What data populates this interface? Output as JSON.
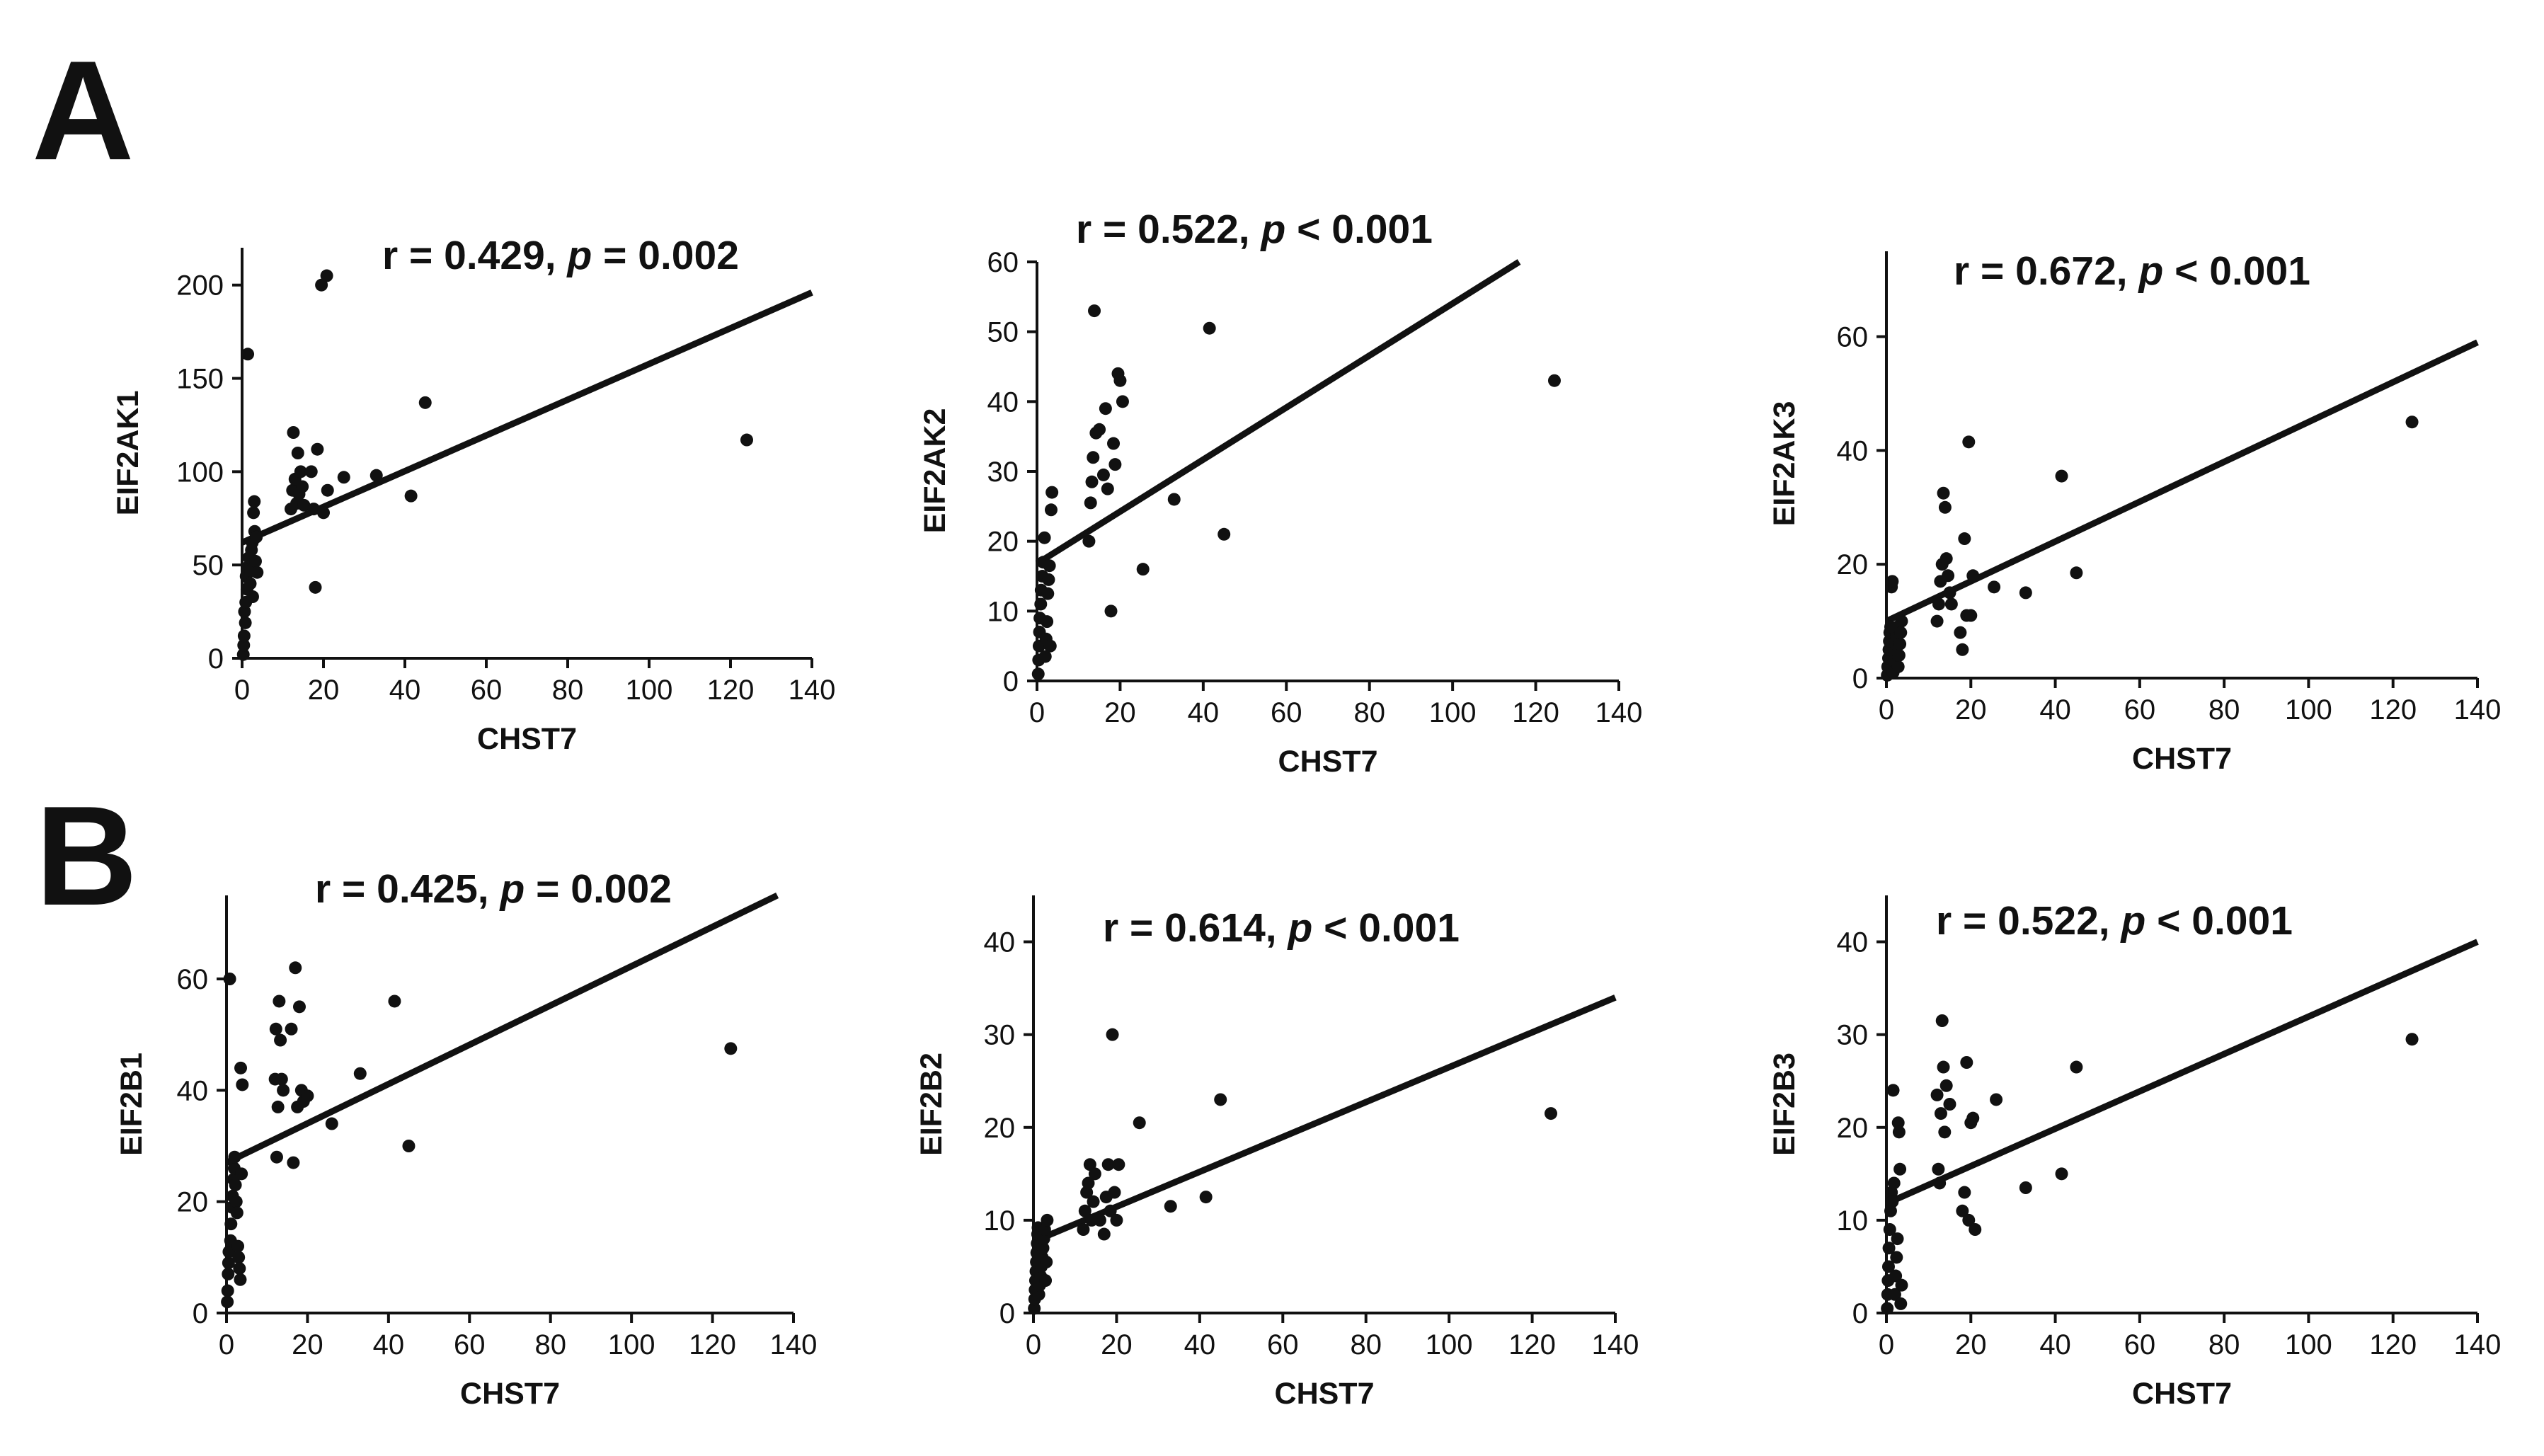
{
  "figure": {
    "panel_letters": [
      "A",
      "B"
    ]
  },
  "chart_data": [
    {
      "type": "scatter",
      "title": "",
      "stat": {
        "r": "0.429",
        "p_op": "=",
        "p": "0.002"
      },
      "xlabel": "CHST7",
      "ylabel": "EIF2AK1",
      "xlim": [
        0,
        140
      ],
      "ylim": [
        0,
        220
      ],
      "xticks": [
        0,
        20,
        40,
        60,
        80,
        100,
        120,
        140
      ],
      "yticks": [
        0,
        50,
        100,
        150,
        200
      ],
      "grid": false,
      "fit": [
        [
          0,
          62
        ],
        [
          140,
          196
        ]
      ],
      "points": [
        [
          0.3,
          2
        ],
        [
          0.4,
          7
        ],
        [
          0.5,
          12
        ],
        [
          0.8,
          19
        ],
        [
          0.6,
          25
        ],
        [
          0.9,
          30
        ],
        [
          1.2,
          37
        ],
        [
          1.0,
          44
        ],
        [
          1.4,
          163
        ],
        [
          1.5,
          49
        ],
        [
          1.7,
          54
        ],
        [
          2.0,
          40
        ],
        [
          2.2,
          47
        ],
        [
          2.3,
          58
        ],
        [
          2.5,
          62
        ],
        [
          2.6,
          33
        ],
        [
          2.8,
          78
        ],
        [
          3.0,
          84
        ],
        [
          3.1,
          68
        ],
        [
          3.3,
          52
        ],
        [
          3.5,
          65
        ],
        [
          3.7,
          46
        ],
        [
          12.0,
          80
        ],
        [
          12.4,
          90
        ],
        [
          12.6,
          121
        ],
        [
          13.0,
          96
        ],
        [
          13.4,
          83
        ],
        [
          13.7,
          110
        ],
        [
          14.0,
          88
        ],
        [
          14.4,
          100
        ],
        [
          14.8,
          92
        ],
        [
          15.2,
          82
        ],
        [
          17.0,
          100
        ],
        [
          17.6,
          80
        ],
        [
          18.0,
          38
        ],
        [
          18.5,
          112
        ],
        [
          19.5,
          200
        ],
        [
          20.0,
          78
        ],
        [
          20.8,
          205
        ],
        [
          21.0,
          90
        ],
        [
          25.0,
          97
        ],
        [
          33.0,
          98
        ],
        [
          41.5,
          87
        ],
        [
          45.0,
          137
        ],
        [
          124.0,
          117
        ]
      ]
    },
    {
      "type": "scatter",
      "title": "",
      "stat": {
        "r": "0.522",
        "p_op": "<",
        "p": "0.001"
      },
      "xlabel": "CHST7",
      "ylabel": "EIF2AK2",
      "xlim": [
        0,
        140
      ],
      "ylim": [
        0,
        60
      ],
      "xticks": [
        0,
        20,
        40,
        60,
        80,
        100,
        120,
        140
      ],
      "yticks": [
        0,
        10,
        20,
        30,
        40,
        50,
        60
      ],
      "grid": false,
      "fit": [
        [
          0,
          16.8
        ],
        [
          116,
          60
        ]
      ],
      "points": [
        [
          0.3,
          1
        ],
        [
          0.4,
          3
        ],
        [
          0.5,
          5
        ],
        [
          0.6,
          7
        ],
        [
          0.7,
          9
        ],
        [
          0.9,
          11
        ],
        [
          1.0,
          13
        ],
        [
          1.3,
          15
        ],
        [
          1.5,
          17
        ],
        [
          1.8,
          20.5
        ],
        [
          2.0,
          3.5
        ],
        [
          2.2,
          6
        ],
        [
          2.4,
          8.5
        ],
        [
          2.6,
          12.5
        ],
        [
          2.8,
          14.5
        ],
        [
          3.0,
          16.5
        ],
        [
          3.2,
          5
        ],
        [
          3.4,
          24.5
        ],
        [
          3.6,
          27
        ],
        [
          12.5,
          20
        ],
        [
          12.9,
          25.5
        ],
        [
          13.2,
          28.5
        ],
        [
          13.5,
          32
        ],
        [
          13.8,
          53
        ],
        [
          14.2,
          35.5
        ],
        [
          15.0,
          36
        ],
        [
          16.0,
          29.5
        ],
        [
          16.5,
          39
        ],
        [
          17.0,
          27.5
        ],
        [
          17.8,
          10
        ],
        [
          18.4,
          34
        ],
        [
          18.8,
          31
        ],
        [
          19.5,
          44
        ],
        [
          20.0,
          43
        ],
        [
          20.6,
          40
        ],
        [
          25.5,
          16
        ],
        [
          33.0,
          26
        ],
        [
          41.5,
          50.5
        ],
        [
          45.0,
          21
        ],
        [
          124.5,
          43
        ]
      ]
    },
    {
      "type": "scatter",
      "title": "",
      "stat": {
        "r": "0.672",
        "p_op": "<",
        "p": "0.001"
      },
      "xlabel": "CHST7",
      "ylabel": "EIF2AK3",
      "xlim": [
        0,
        140
      ],
      "ylim": [
        0,
        75
      ],
      "xticks": [
        0,
        20,
        40,
        60,
        80,
        100,
        120,
        140
      ],
      "yticks": [
        0,
        20,
        40,
        60
      ],
      "grid": false,
      "fit": [
        [
          0,
          10
        ],
        [
          140,
          59
        ]
      ],
      "points": [
        [
          0.2,
          0.5
        ],
        [
          0.3,
          2
        ],
        [
          0.5,
          3.5
        ],
        [
          0.6,
          5
        ],
        [
          0.7,
          6.5
        ],
        [
          0.8,
          8
        ],
        [
          1.0,
          9
        ],
        [
          1.2,
          16
        ],
        [
          1.4,
          17
        ],
        [
          1.6,
          1
        ],
        [
          1.8,
          3
        ],
        [
          2.0,
          4.5
        ],
        [
          2.2,
          6
        ],
        [
          2.4,
          7.5
        ],
        [
          2.6,
          9
        ],
        [
          2.8,
          2
        ],
        [
          3.0,
          4
        ],
        [
          3.2,
          6
        ],
        [
          3.4,
          8
        ],
        [
          3.6,
          10
        ],
        [
          12.0,
          10
        ],
        [
          12.4,
          13
        ],
        [
          12.8,
          17
        ],
        [
          13.2,
          20
        ],
        [
          13.5,
          32.5
        ],
        [
          13.9,
          30
        ],
        [
          14.2,
          21
        ],
        [
          14.6,
          18
        ],
        [
          15.0,
          15
        ],
        [
          15.4,
          13
        ],
        [
          17.5,
          8
        ],
        [
          18.0,
          5
        ],
        [
          18.5,
          24.5
        ],
        [
          19.0,
          11
        ],
        [
          19.5,
          41.5
        ],
        [
          20.0,
          11
        ],
        [
          20.5,
          18
        ],
        [
          25.5,
          16
        ],
        [
          33.0,
          15
        ],
        [
          41.5,
          35.5
        ],
        [
          45.0,
          18.5
        ],
        [
          124.5,
          45
        ]
      ]
    },
    {
      "type": "scatter",
      "title": "",
      "stat": {
        "r": "0.425",
        "p_op": "=",
        "p": "0.002"
      },
      "xlabel": "CHST7",
      "ylabel": "EIF2B1",
      "xlim": [
        0,
        140
      ],
      "ylim": [
        0,
        75
      ],
      "xticks": [
        0,
        20,
        40,
        60,
        80,
        100,
        120,
        140
      ],
      "yticks": [
        0,
        20,
        40,
        60
      ],
      "grid": false,
      "fit": [
        [
          0,
          27
        ],
        [
          136,
          75
        ]
      ],
      "points": [
        [
          0.2,
          2
        ],
        [
          0.3,
          4
        ],
        [
          0.4,
          7
        ],
        [
          0.5,
          9
        ],
        [
          0.6,
          11
        ],
        [
          0.8,
          60
        ],
        [
          1.0,
          13
        ],
        [
          1.1,
          16
        ],
        [
          1.3,
          19
        ],
        [
          1.5,
          21
        ],
        [
          1.7,
          24
        ],
        [
          1.9,
          26
        ],
        [
          2.0,
          28
        ],
        [
          2.2,
          23
        ],
        [
          2.4,
          20
        ],
        [
          2.6,
          18
        ],
        [
          2.8,
          12
        ],
        [
          3.0,
          10
        ],
        [
          3.2,
          8
        ],
        [
          3.4,
          6
        ],
        [
          3.5,
          44
        ],
        [
          3.7,
          25
        ],
        [
          3.9,
          41
        ],
        [
          12.0,
          42
        ],
        [
          12.2,
          51
        ],
        [
          12.4,
          28
        ],
        [
          12.7,
          37
        ],
        [
          13.0,
          56
        ],
        [
          13.3,
          49
        ],
        [
          13.6,
          42
        ],
        [
          14.0,
          40
        ],
        [
          16.0,
          51
        ],
        [
          16.5,
          27
        ],
        [
          17.0,
          62
        ],
        [
          17.5,
          37
        ],
        [
          18.0,
          55
        ],
        [
          18.5,
          40
        ],
        [
          19.0,
          38
        ],
        [
          20.0,
          39
        ],
        [
          26.0,
          34
        ],
        [
          33.0,
          43
        ],
        [
          41.5,
          56
        ],
        [
          45.0,
          30
        ],
        [
          124.5,
          47.5
        ]
      ]
    },
    {
      "type": "scatter",
      "title": "",
      "stat": {
        "r": "0.614",
        "p_op": "<",
        "p": "0.001"
      },
      "xlabel": "CHST7",
      "ylabel": "EIF2B2",
      "xlim": [
        0,
        140
      ],
      "ylim": [
        0,
        45
      ],
      "xticks": [
        0,
        20,
        40,
        60,
        80,
        100,
        120,
        140
      ],
      "yticks": [
        0,
        10,
        20,
        30,
        40
      ],
      "grid": false,
      "fit": [
        [
          0,
          7.7
        ],
        [
          140,
          34
        ]
      ],
      "points": [
        [
          0.2,
          0.5
        ],
        [
          0.3,
          1.5
        ],
        [
          0.4,
          2.5
        ],
        [
          0.5,
          3.5
        ],
        [
          0.6,
          4.5
        ],
        [
          0.7,
          5.5
        ],
        [
          0.8,
          6.5
        ],
        [
          0.9,
          7.5
        ],
        [
          1.0,
          8.5
        ],
        [
          1.1,
          9.2
        ],
        [
          1.3,
          2
        ],
        [
          1.5,
          3
        ],
        [
          1.7,
          4
        ],
        [
          1.9,
          5
        ],
        [
          2.1,
          6
        ],
        [
          2.3,
          7
        ],
        [
          2.5,
          8
        ],
        [
          2.7,
          9
        ],
        [
          2.9,
          3.5
        ],
        [
          3.1,
          5.5
        ],
        [
          3.3,
          10
        ],
        [
          12.0,
          9
        ],
        [
          12.4,
          11
        ],
        [
          12.8,
          13
        ],
        [
          13.2,
          14
        ],
        [
          13.6,
          16
        ],
        [
          14.0,
          10
        ],
        [
          14.4,
          12
        ],
        [
          14.8,
          15
        ],
        [
          16.0,
          10
        ],
        [
          17.0,
          8.5
        ],
        [
          17.5,
          12.5
        ],
        [
          18.0,
          16
        ],
        [
          18.5,
          11
        ],
        [
          19.0,
          30
        ],
        [
          19.5,
          13
        ],
        [
          20.0,
          10
        ],
        [
          20.5,
          16
        ],
        [
          25.5,
          20.5
        ],
        [
          33.0,
          11.5
        ],
        [
          41.5,
          12.5
        ],
        [
          45.0,
          23
        ],
        [
          124.5,
          21.5
        ]
      ]
    },
    {
      "type": "scatter",
      "title": "",
      "stat": {
        "r": "0.522",
        "p_op": "<",
        "p": "0.001"
      },
      "xlabel": "CHST7",
      "ylabel": "EIF2B3",
      "xlim": [
        0,
        140
      ],
      "ylim": [
        0,
        45
      ],
      "xticks": [
        0,
        20,
        40,
        60,
        80,
        100,
        120,
        140
      ],
      "yticks": [
        0,
        10,
        20,
        30,
        40
      ],
      "grid": false,
      "fit": [
        [
          0,
          11.8
        ],
        [
          140,
          40
        ]
      ],
      "points": [
        [
          0.2,
          0.5
        ],
        [
          0.3,
          2
        ],
        [
          0.4,
          3.5
        ],
        [
          0.5,
          5
        ],
        [
          0.6,
          7
        ],
        [
          0.8,
          9
        ],
        [
          1.0,
          11
        ],
        [
          1.2,
          13
        ],
        [
          1.4,
          12
        ],
        [
          1.6,
          24
        ],
        [
          1.8,
          14
        ],
        [
          2.0,
          2
        ],
        [
          2.2,
          4
        ],
        [
          2.4,
          6
        ],
        [
          2.6,
          8
        ],
        [
          2.8,
          20.5
        ],
        [
          3.0,
          19.5
        ],
        [
          3.2,
          15.5
        ],
        [
          3.4,
          1
        ],
        [
          3.6,
          3
        ],
        [
          12.0,
          23.5
        ],
        [
          12.3,
          15.5
        ],
        [
          12.6,
          14
        ],
        [
          12.9,
          21.5
        ],
        [
          13.2,
          31.5
        ],
        [
          13.5,
          26.5
        ],
        [
          13.8,
          19.5
        ],
        [
          14.2,
          24.5
        ],
        [
          15.0,
          22.5
        ],
        [
          18.0,
          11
        ],
        [
          18.5,
          13
        ],
        [
          19.0,
          27
        ],
        [
          19.5,
          10
        ],
        [
          20.0,
          20.5
        ],
        [
          20.5,
          21
        ],
        [
          21.0,
          9
        ],
        [
          26.0,
          23
        ],
        [
          33.0,
          13.5
        ],
        [
          41.5,
          15
        ],
        [
          45.0,
          26.5
        ],
        [
          124.5,
          29.5
        ]
      ]
    }
  ]
}
